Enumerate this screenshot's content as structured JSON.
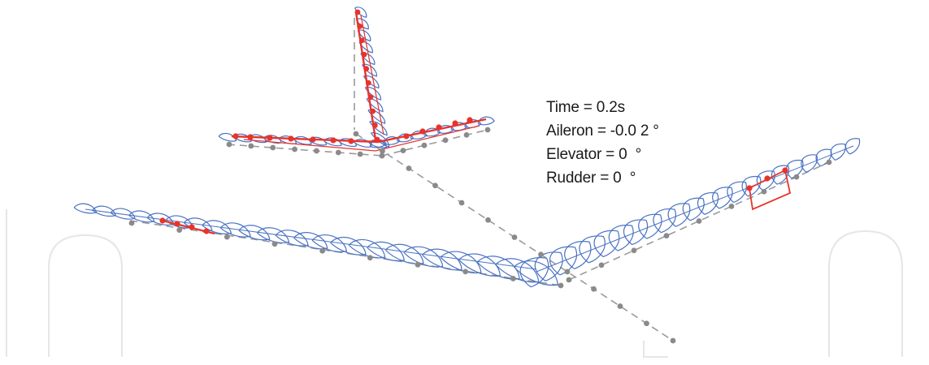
{
  "readout": {
    "time": "Time = 0.2s",
    "aileron": "Aileron = -0.0 2 °",
    "elevator": "Elevator = 0  °",
    "rudder": "Rudder = 0  °"
  },
  "colors": {
    "structure": "#4a72c4",
    "highlight": "#e8332b",
    "node": "#8a8a8a",
    "axis": "#9a9a9a",
    "watermark": "#e6e6e6",
    "text": "#1a1a1a"
  }
}
